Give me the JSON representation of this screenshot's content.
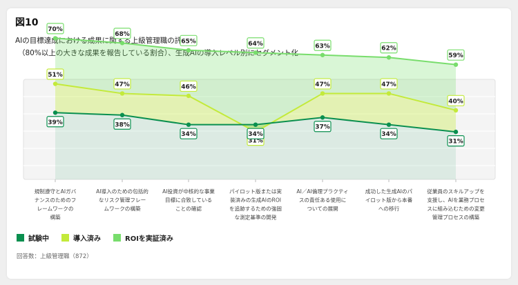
{
  "figure_label": "図10",
  "title_line1": "AIの目標達成における成果に関する上級管理職の評価",
  "title_line2": "（80%以上の大きな成果を報告している割合）、生成AIの導入レベル別にセグメント化",
  "note": "回答数：上級管理職（872）",
  "colors": {
    "pilot": "#0a8f4f",
    "adopted": "#c3ea3a",
    "roi": "#78dd6c"
  },
  "chart_data": {
    "type": "area",
    "categories": [
      "規制遵守とAIガバナンスのためのフレームワークの構築",
      "AI導入のための包括的なリスク管理フレームワークの構築",
      "AI投資が中核的な事業目標に合致していることの確認",
      "パイロット版または実装済みの生成AIのROIを追跡するための強固な測定基準の開発",
      "AI／AI倫理プラクティスの責任ある使用についての展開",
      "成功した生成AIのパイロット版から本番への移行",
      "従業員のスキルアップを支援し、AIを業務プロセスに組み込むための変更管理プロセスの構築"
    ],
    "category_lines": [
      [
        "規制遵守とAIガバ",
        "ナンスのためのフ",
        "レームワークの",
        "構築"
      ],
      [
        "AI導入のための包括的",
        "なリスク管理フレー",
        "ムワークの構築"
      ],
      [
        "AI投資が中核的な事業",
        "目標に合致している",
        "ことの確認"
      ],
      [
        "パイロット版または実",
        "装済みの生成AIのROI",
        "を追跡するための強固",
        "な測定基準の開発"
      ],
      [
        "AI／AI倫理プラクティ",
        "スの責任ある使用に",
        "ついての展開"
      ],
      [
        "成功した生成AIのパ",
        "イロット版から本番",
        "への移行"
      ],
      [
        "従業員のスキルアップを",
        "支援し、AIを業務プロセ",
        "スに組み込むための変更",
        "管理プロセスの構築"
      ]
    ],
    "series": [
      {
        "name": "試験中",
        "key": "pilot",
        "values": [
          39,
          38,
          34,
          34,
          37,
          34,
          31
        ]
      },
      {
        "name": "導入済み",
        "key": "adopted",
        "values": [
          51,
          47,
          46,
          31,
          47,
          47,
          40
        ]
      },
      {
        "name": "ROIを実証済み",
        "key": "roi",
        "values": [
          70,
          68,
          65,
          64,
          63,
          62,
          59
        ]
      }
    ],
    "value_suffix": "%",
    "legend": "bottom-left",
    "grid": true
  }
}
